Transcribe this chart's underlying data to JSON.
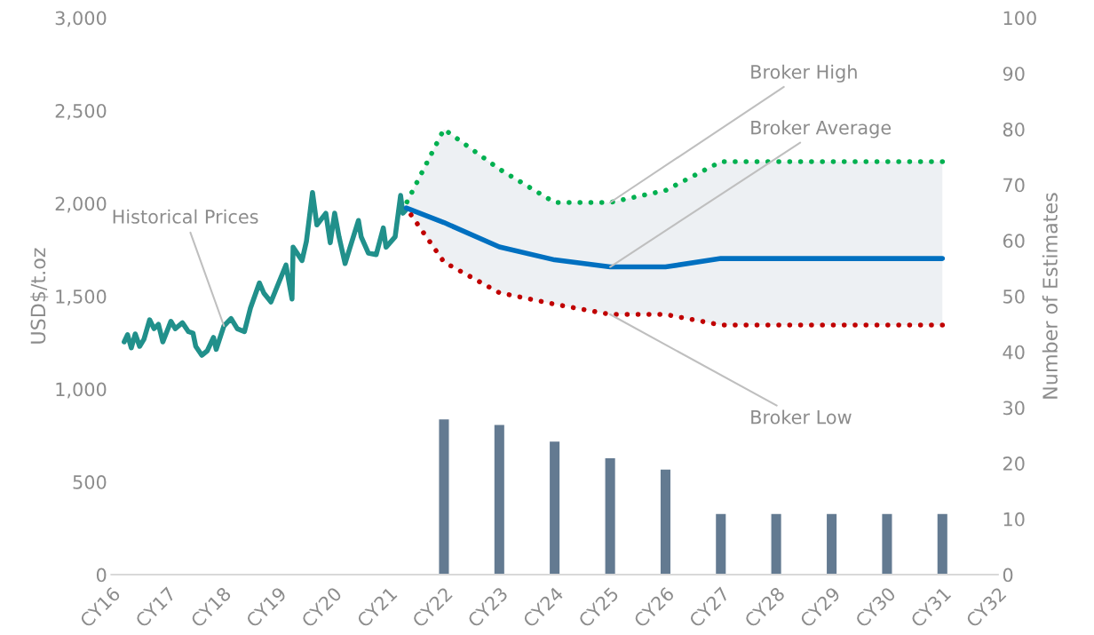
{
  "chart_data": {
    "type": "line",
    "ylabel": "USD$/t.oz",
    "y2label": "Number of Estimates",
    "xlim": [
      "2016",
      "2032"
    ],
    "xticks": [
      {
        "value": "2016",
        "label": "CY16"
      },
      {
        "value": "2017",
        "label": "CY17"
      },
      {
        "value": "2018",
        "label": "CY18"
      },
      {
        "value": "2019",
        "label": "CY19"
      },
      {
        "value": "2020",
        "label": "CY20"
      },
      {
        "value": "2021",
        "label": "CY21"
      },
      {
        "value": "2022",
        "label": "CY22"
      },
      {
        "value": "2023",
        "label": "CY23"
      },
      {
        "value": "2024",
        "label": "CY24"
      },
      {
        "value": "2025",
        "label": "CY25"
      },
      {
        "value": "2026",
        "label": "CY26"
      },
      {
        "value": "2027",
        "label": "CY27"
      },
      {
        "value": "2028",
        "label": "CY28"
      },
      {
        "value": "2029",
        "label": "CY29"
      },
      {
        "value": "2030",
        "label": "CY30"
      },
      {
        "value": "2031",
        "label": "CY31"
      },
      {
        "value": "2032",
        "label": "CY32"
      }
    ],
    "ylim": [
      0,
      3000
    ],
    "yticks": [
      {
        "value": 0,
        "label": "0"
      },
      {
        "value": 500,
        "label": "500"
      },
      {
        "value": 1000,
        "label": "1,000"
      },
      {
        "value": 1500,
        "label": "1,500"
      },
      {
        "value": 2000,
        "label": "2,000"
      },
      {
        "value": 2500,
        "label": "2,500"
      },
      {
        "value": 3000,
        "label": "3,000"
      }
    ],
    "y2lim": [
      0,
      100
    ],
    "y2ticks": [
      0,
      10,
      20,
      30,
      40,
      50,
      60,
      70,
      80,
      90,
      100
    ],
    "grid": false,
    "legend": false,
    "series": [
      {
        "type": "bar",
        "axis": "y2",
        "color": "#637a91",
        "x": [
          "2022",
          "2023",
          "2024",
          "2025",
          "2026",
          "2027",
          "2028",
          "2029",
          "2030",
          "2031"
        ],
        "values": [
          28,
          27,
          24,
          21,
          19,
          11,
          11,
          11,
          11,
          11
        ]
      },
      {
        "name": "Historical Prices",
        "color": "#21908b",
        "line_style": "solid",
        "x": [
          "2016-03-24",
          "2016-04-15",
          "2016-05-10",
          "2016-06-05",
          "2016-07-04",
          "2016-08-02",
          "2016-09-08",
          "2016-10-07",
          "2016-11-05",
          "2016-12-04",
          "2017-01-26",
          "2017-02-24",
          "2017-04-12",
          "2017-05-22",
          "2017-06-21",
          "2017-07-09",
          "2017-08-18",
          "2017-09-23",
          "2017-11-03",
          "2017-11-21",
          "2018-01-11",
          "2018-02-27",
          "2018-04-09",
          "2018-05-26",
          "2018-07-05",
          "2018-09-02",
          "2018-10-01",
          "2018-11-17",
          "2019-01-07",
          "2019-02-24",
          "2019-04-05",
          "2019-04-12",
          "2019-06-10",
          "2019-07-09",
          "2019-08-18",
          "2019-09-16",
          "2019-11-14",
          "2019-12-13",
          "2020-01-11",
          "2020-02-09",
          "2020-03-20",
          "2020-04-19",
          "2020-06-16",
          "2020-07-04",
          "2020-08-21",
          "2020-10-11",
          "2020-11-27",
          "2020-12-15",
          "2021-02-13",
          "2021-03-21",
          "2021-04-05",
          "2021-04-23"
        ],
        "values": [
          1254,
          1293,
          1222,
          1297,
          1230,
          1269,
          1373,
          1325,
          1349,
          1254,
          1365,
          1325,
          1357,
          1309,
          1301,
          1230,
          1182,
          1206,
          1278,
          1214,
          1340,
          1380,
          1325,
          1309,
          1437,
          1572,
          1517,
          1469,
          1572,
          1668,
          1485,
          1764,
          1692,
          1796,
          2059,
          1884,
          1947,
          1788,
          1947,
          1820,
          1676,
          1756,
          1908,
          1820,
          1732,
          1724,
          1868,
          1764,
          1820,
          2043,
          1947,
          1963
        ]
      },
      {
        "name": "Broker High",
        "color": "#00b050",
        "line_style": "dotted",
        "x": [
          "2021-04-27",
          "2022",
          "2023",
          "2024",
          "2025",
          "2026",
          "2027",
          "2028",
          "2029",
          "2030",
          "2031"
        ],
        "values": [
          2000,
          2400,
          2185,
          2005,
          2005,
          2070,
          2225,
          2225,
          2225,
          2225,
          2225
        ]
      },
      {
        "name": "Broker Average",
        "color": "#0070c0",
        "line_style": "solid",
        "x": [
          "2021-04-27",
          "2022",
          "2023",
          "2024",
          "2025",
          "2026",
          "2027",
          "2028",
          "2029",
          "2030",
          "2031"
        ],
        "values": [
          1976,
          1897,
          1766,
          1696,
          1658,
          1658,
          1703,
          1703,
          1703,
          1703,
          1703
        ],
        "lower": [
          1976,
          1684,
          1519,
          1457,
          1402,
          1402,
          1345,
          1345,
          1345,
          1345,
          1345
        ],
        "upper": [
          2000,
          2400,
          2185,
          2005,
          2005,
          2070,
          2225,
          2225,
          2225,
          2225,
          2225
        ]
      },
      {
        "name": "Broker Low",
        "color": "#c00000",
        "line_style": "dotted",
        "x": [
          "2021-04-27",
          "2022",
          "2023",
          "2024",
          "2025",
          "2026",
          "2027",
          "2028",
          "2029",
          "2030",
          "2031"
        ],
        "values": [
          1976,
          1684,
          1519,
          1457,
          1402,
          1402,
          1345,
          1345,
          1345,
          1345,
          1345
        ]
      }
    ]
  }
}
